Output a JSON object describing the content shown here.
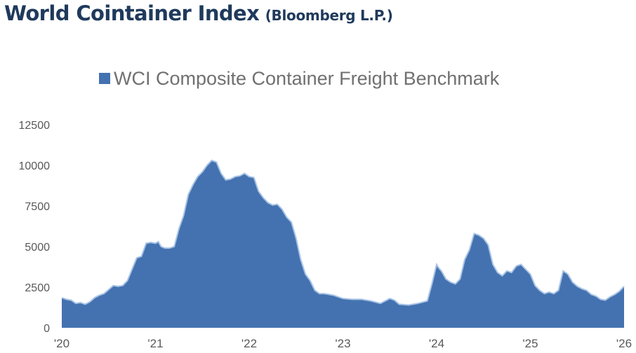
{
  "header": {
    "title": "World Cointainer Index",
    "subtitle": "(Bloomberg L.P.)"
  },
  "colors": {
    "title": "#1f3a5c",
    "area_fill": "#4472b0",
    "area_stroke": "#a9c4e6",
    "tick_text": "#595959",
    "legend_text": "#707070"
  },
  "chart_data": {
    "type": "area",
    "title": "",
    "xlabel": "",
    "ylabel": "",
    "legend": {
      "position": "top-center",
      "entries": [
        "WCI Composite Container Freight Benchmark"
      ]
    },
    "grid": false,
    "ylim": [
      0,
      12500
    ],
    "yticks": [
      "0",
      "2500",
      "5000",
      "7500",
      "10000",
      "12500"
    ],
    "xlim": [
      2020,
      2026
    ],
    "xticks": [
      {
        "x": 2020,
        "label": "'20"
      },
      {
        "x": 2021,
        "label": "'21"
      },
      {
        "x": 2022,
        "label": "'22"
      },
      {
        "x": 2023,
        "label": "'23"
      },
      {
        "x": 2024,
        "label": "'24"
      },
      {
        "x": 2025,
        "label": "'25"
      },
      {
        "x": 2026,
        "label": "'26"
      }
    ],
    "series": [
      {
        "name": "WCI Composite Container Freight Benchmark",
        "x": [
          2020.0,
          2020.05,
          2020.1,
          2020.15,
          2020.2,
          2020.25,
          2020.3,
          2020.35,
          2020.4,
          2020.45,
          2020.5,
          2020.55,
          2020.6,
          2020.65,
          2020.7,
          2020.75,
          2020.8,
          2020.85,
          2020.9,
          2020.95,
          2021.0,
          2021.03,
          2021.06,
          2021.1,
          2021.15,
          2021.2,
          2021.25,
          2021.3,
          2021.35,
          2021.4,
          2021.45,
          2021.5,
          2021.55,
          2021.6,
          2021.65,
          2021.7,
          2021.75,
          2021.8,
          2021.85,
          2021.9,
          2021.95,
          2022.0,
          2022.05,
          2022.1,
          2022.15,
          2022.2,
          2022.25,
          2022.3,
          2022.35,
          2022.4,
          2022.45,
          2022.5,
          2022.55,
          2022.6,
          2022.65,
          2022.7,
          2022.75,
          2022.8,
          2022.85,
          2022.9,
          2022.95,
          2023.0,
          2023.1,
          2023.2,
          2023.3,
          2023.4,
          2023.5,
          2023.55,
          2023.6,
          2023.7,
          2023.8,
          2023.9,
          2023.95,
          2024.0,
          2024.02,
          2024.05,
          2024.1,
          2024.15,
          2024.2,
          2024.25,
          2024.3,
          2024.35,
          2024.4,
          2024.45,
          2024.5,
          2024.55,
          2024.6,
          2024.65,
          2024.7,
          2024.75,
          2024.8,
          2024.85,
          2024.9,
          2024.95,
          2025.0,
          2025.05,
          2025.1,
          2025.15,
          2025.2,
          2025.25,
          2025.3,
          2025.35,
          2025.4,
          2025.45,
          2025.5,
          2025.55,
          2025.6,
          2025.65,
          2025.7,
          2025.75,
          2025.8,
          2025.85,
          2025.9,
          2025.95,
          2026.0
        ],
        "values": [
          1850,
          1750,
          1700,
          1500,
          1550,
          1450,
          1600,
          1850,
          2000,
          2100,
          2350,
          2600,
          2550,
          2600,
          2900,
          3600,
          4300,
          4400,
          5200,
          5250,
          5200,
          5300,
          5000,
          4900,
          4900,
          5000,
          6100,
          6900,
          8200,
          8800,
          9300,
          9600,
          10000,
          10300,
          10200,
          9500,
          9100,
          9150,
          9300,
          9350,
          9500,
          9300,
          9250,
          8400,
          8000,
          7700,
          7550,
          7600,
          7300,
          6800,
          6500,
          5500,
          4200,
          3300,
          2900,
          2300,
          2100,
          2100,
          2050,
          2000,
          1900,
          1800,
          1750,
          1750,
          1650,
          1500,
          1800,
          1700,
          1450,
          1400,
          1500,
          1650,
          2700,
          3900,
          3700,
          3500,
          3000,
          2800,
          2700,
          3000,
          4200,
          4800,
          5800,
          5700,
          5500,
          5100,
          3900,
          3400,
          3200,
          3500,
          3400,
          3800,
          3900,
          3600,
          3300,
          2600,
          2300,
          2100,
          2200,
          2100,
          2300,
          3500,
          3300,
          2800,
          2550,
          2400,
          2300,
          2050,
          1950,
          1750,
          1700,
          1900,
          2050,
          2250,
          2550
        ]
      }
    ]
  }
}
